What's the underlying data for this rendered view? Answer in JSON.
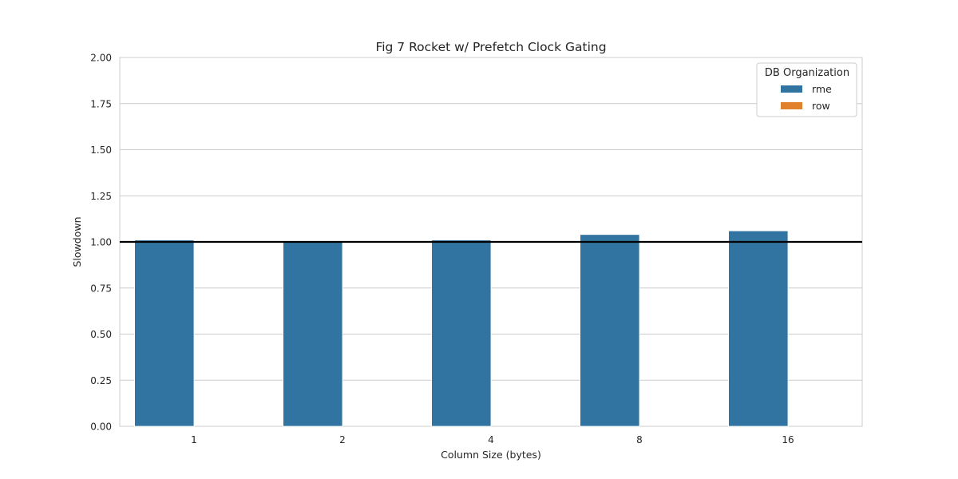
{
  "chart_data": {
    "type": "bar",
    "title": "Fig 7 Rocket w/ Prefetch Clock Gating",
    "xlabel": "Column Size (bytes)",
    "ylabel": "Slowdown",
    "categories": [
      "1",
      "2",
      "4",
      "8",
      "16"
    ],
    "ylim": [
      0,
      2.0
    ],
    "yticks": [
      "0.00",
      "0.25",
      "0.50",
      "0.75",
      "1.00",
      "1.25",
      "1.50",
      "1.75",
      "2.00"
    ],
    "grid": "horizontal",
    "reference_line": 1.0,
    "legend": {
      "title": "DB Organization",
      "placement": "top-right"
    },
    "series": [
      {
        "name": "rme",
        "color": "#3274a1",
        "values": [
          1.01,
          1.0,
          1.01,
          1.04,
          1.06
        ]
      },
      {
        "name": "row",
        "color": "#e1812c",
        "values": [
          0,
          0,
          0,
          0,
          0
        ]
      }
    ]
  }
}
